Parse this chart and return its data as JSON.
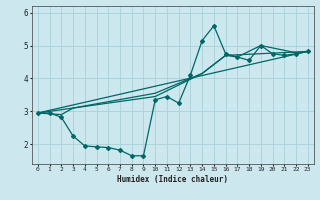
{
  "xlabel": "Humidex (Indice chaleur)",
  "bg_color": "#cce8ee",
  "grid_color": "#aad4dc",
  "line_color": "#006666",
  "xlim": [
    -0.5,
    23.5
  ],
  "ylim": [
    1.4,
    6.2
  ],
  "yticks": [
    2,
    3,
    4,
    5,
    6
  ],
  "xticks": [
    0,
    1,
    2,
    3,
    4,
    5,
    6,
    7,
    8,
    9,
    10,
    11,
    12,
    13,
    14,
    15,
    16,
    17,
    18,
    19,
    20,
    21,
    22,
    23
  ],
  "series1_x": [
    0,
    1,
    2,
    3,
    4,
    5,
    6,
    7,
    8,
    9,
    10,
    11,
    12,
    13,
    14,
    15,
    16,
    17,
    18,
    19,
    20,
    21,
    22,
    23
  ],
  "series1_y": [
    2.95,
    2.95,
    2.82,
    2.25,
    1.95,
    1.92,
    1.9,
    1.82,
    1.65,
    1.65,
    3.35,
    3.45,
    3.25,
    4.1,
    5.15,
    5.6,
    4.75,
    4.65,
    4.55,
    5.0,
    4.75,
    4.7,
    4.75,
    4.82
  ],
  "series2_x": [
    0,
    2,
    3,
    10,
    14,
    16,
    17,
    19,
    22,
    23
  ],
  "series2_y": [
    2.95,
    2.9,
    3.1,
    3.45,
    4.15,
    4.7,
    4.65,
    5.0,
    4.78,
    4.82
  ],
  "series3_x": [
    0,
    23
  ],
  "series3_y": [
    2.95,
    4.82
  ],
  "series4_x": [
    0,
    3,
    10,
    14,
    16,
    23
  ],
  "series4_y": [
    2.95,
    3.1,
    3.55,
    4.15,
    4.7,
    4.82
  ]
}
